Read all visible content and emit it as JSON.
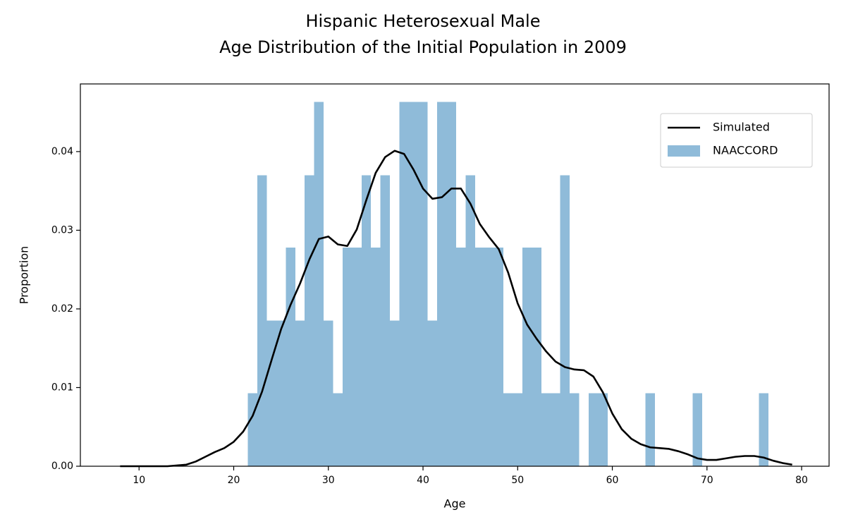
{
  "chart_data": {
    "type": "histogram",
    "title": [
      "Hispanic Heterosexual Male",
      "Age Distribution of the Initial Population in 2009"
    ],
    "x_label": "Age",
    "y_label": "Proportion",
    "xlim": [
      3.8,
      82.9
    ],
    "ylim": [
      0,
      0.0486
    ],
    "xticks": [
      10,
      20,
      30,
      40,
      50,
      60,
      70,
      80
    ],
    "yticks": [
      {
        "value": 0,
        "label": "0.00"
      },
      {
        "value": 0.01,
        "label": "0.01"
      },
      {
        "value": 0.02,
        "label": "0.02"
      },
      {
        "value": 0.03,
        "label": "0.03"
      },
      {
        "value": 0.04,
        "label": "0.04"
      }
    ],
    "legend": "upper right",
    "series": [
      {
        "name": "Simulated",
        "type": "line",
        "color": "#000000",
        "x": [
          8,
          9,
          10,
          11,
          12,
          13,
          14,
          15,
          16,
          17,
          18,
          19,
          20,
          21,
          22,
          23,
          24,
          25,
          26,
          27,
          28,
          29,
          30,
          31,
          32,
          33,
          34,
          35,
          36,
          37,
          38,
          39,
          40,
          41,
          42,
          43,
          44,
          45,
          46,
          47,
          48,
          49,
          50,
          51,
          52,
          53,
          54,
          55,
          56,
          57,
          58,
          59,
          60,
          61,
          62,
          63,
          64,
          65,
          66,
          67,
          68,
          69,
          70,
          71,
          72,
          73,
          74,
          75,
          76,
          77,
          78,
          79
        ],
        "values": [
          0,
          0,
          0,
          0,
          0,
          0,
          0.0001,
          0.0002,
          0.0006,
          0.0012,
          0.0018,
          0.0023,
          0.0031,
          0.0044,
          0.0064,
          0.0095,
          0.0135,
          0.0174,
          0.0205,
          0.0232,
          0.0263,
          0.0289,
          0.0292,
          0.0282,
          0.028,
          0.0301,
          0.0338,
          0.0373,
          0.0393,
          0.0401,
          0.0397,
          0.0377,
          0.0353,
          0.034,
          0.0342,
          0.0353,
          0.0353,
          0.0334,
          0.0308,
          0.0291,
          0.0276,
          0.0246,
          0.0207,
          0.018,
          0.0162,
          0.0146,
          0.0133,
          0.0126,
          0.0123,
          0.0122,
          0.0114,
          0.0094,
          0.0067,
          0.0047,
          0.0035,
          0.0028,
          0.0024,
          0.0023,
          0.0022,
          0.0019,
          0.0015,
          0.001,
          0.0008,
          0.0008,
          0.001,
          0.0012,
          0.0013,
          0.0013,
          0.0011,
          0.0007,
          0.0004,
          0.0002
        ]
      },
      {
        "name": "NAACCORD",
        "type": "histogram",
        "color": "#8fbbd9",
        "bins": [
          21.5,
          22.5,
          23.5,
          24.5,
          25.5,
          26.5,
          27.5,
          28.5,
          29.5,
          30.5,
          31.5,
          32.5,
          33.5,
          34.5,
          35.5,
          36.5,
          37.5,
          38.5,
          39.5,
          40.5,
          41.5,
          42.5,
          43.5,
          44.5,
          45.5,
          46.5,
          47.5,
          48.5,
          49.5,
          50.5,
          51.5,
          52.5,
          53.5,
          54.5,
          55.5,
          56.5,
          57.5,
          58.5,
          59.5,
          60.5,
          61.5,
          62.5,
          63.5,
          64.5,
          65.5,
          66.5,
          67.5,
          68.5,
          69.5,
          70.5,
          71.5,
          72.5,
          73.5,
          74.5,
          75.5,
          76.5
        ],
        "values": [
          0.0093,
          0.037,
          0.0185,
          0.0185,
          0.0278,
          0.0185,
          0.037,
          0.0463,
          0.0185,
          0.0093,
          0.0278,
          0.0278,
          0.037,
          0.0278,
          0.037,
          0.0185,
          0.0463,
          0.0463,
          0.0463,
          0.0185,
          0.0463,
          0.0463,
          0.0278,
          0.037,
          0.0278,
          0.0278,
          0.0278,
          0.0093,
          0.0093,
          0.0278,
          0.0278,
          0.0093,
          0.0093,
          0.037,
          0.0093,
          0,
          0.0093,
          0.0093,
          0,
          0,
          0,
          0,
          0.0093,
          0,
          0,
          0,
          0,
          0.0093,
          0,
          0,
          0,
          0,
          0,
          0,
          0.0093
        ]
      }
    ]
  }
}
